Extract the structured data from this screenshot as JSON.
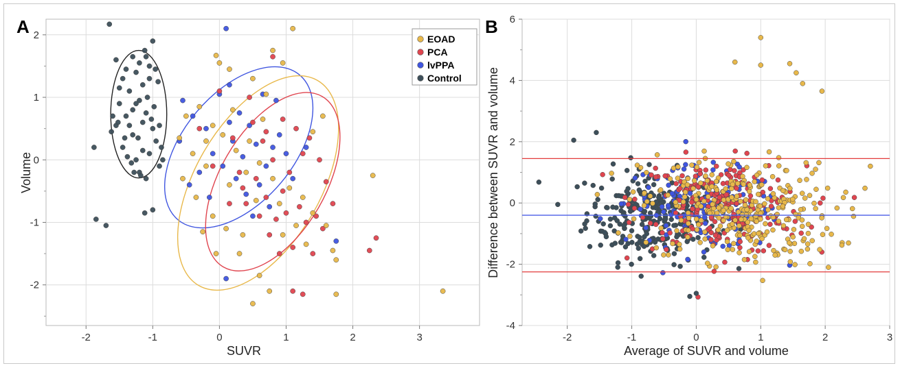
{
  "colors": {
    "EOAD": "#e8b84a",
    "PCA": "#e0454f",
    "lvPPA": "#3f55e0",
    "Control": "#3d4f5a",
    "limit_line": "#e23a3a",
    "mean_line": "#4a5ee6"
  },
  "panelA": {
    "label": "A",
    "xlabel": "SUVR",
    "ylabel": "Volume",
    "xticks": [
      "-2",
      "-1",
      "0",
      "1",
      "2",
      "3"
    ],
    "yticks": [
      "2",
      "1",
      "0",
      "-1",
      "-2"
    ],
    "legend": [
      "EOAD",
      "PCA",
      "lvPPA",
      "Control"
    ]
  },
  "panelB": {
    "label": "B",
    "xlabel": "Average of SUVR and volume",
    "ylabel": "Difference between SUVR and volume",
    "xticks": [
      "-2",
      "-1",
      "0",
      "1",
      "2",
      "3"
    ],
    "yticks": [
      "6",
      "4",
      "2",
      "0",
      "-2",
      "-4"
    ]
  },
  "chart_data": [
    {
      "type": "scatter",
      "xlabel": "SUVR",
      "ylabel": "Volume",
      "xlim": [
        -2.6,
        3.9
      ],
      "ylim": [
        -2.65,
        2.25
      ],
      "legend_position": "top-right",
      "series": [
        {
          "name": "Control",
          "points": [
            [
              -1.65,
              2.17
            ],
            [
              -1.55,
              1.6
            ],
            [
              -1.45,
              1.3
            ],
            [
              -1.35,
              1.1
            ],
            [
              -1.5,
              0.9
            ],
            [
              -1.4,
              0.7
            ],
            [
              -1.55,
              0.55
            ],
            [
              -1.3,
              0.4
            ],
            [
              -1.45,
              0.2
            ],
            [
              -1.25,
              0.0
            ],
            [
              -1.2,
              -0.2
            ],
            [
              -1.1,
              1.65
            ],
            [
              -1.0,
              1.9
            ],
            [
              -1.05,
              1.5
            ],
            [
              -1.15,
              1.2
            ],
            [
              -1.2,
              0.95
            ],
            [
              -1.1,
              0.75
            ],
            [
              -1.0,
              0.5
            ],
            [
              -0.95,
              0.3
            ],
            [
              -1.05,
              0.1
            ],
            [
              -0.9,
              -0.1
            ],
            [
              -0.85,
              0.0
            ],
            [
              -1.3,
              0.8
            ],
            [
              -1.35,
              0.55
            ],
            [
              -1.15,
              0.6
            ],
            [
              -1.25,
              1.4
            ],
            [
              -1.2,
              1.55
            ],
            [
              -1.08,
              1.0
            ],
            [
              -0.98,
              0.85
            ],
            [
              -1.42,
              0.35
            ],
            [
              -1.5,
              1.15
            ],
            [
              -1.6,
              0.7
            ],
            [
              -1.1,
              -0.3
            ],
            [
              -1.18,
              -0.25
            ],
            [
              -1.28,
              -0.2
            ],
            [
              -0.92,
              1.25
            ],
            [
              -1.88,
              0.2
            ],
            [
              -1.85,
              -0.95
            ],
            [
              -1.7,
              -1.05
            ],
            [
              -1.0,
              -0.8
            ],
            [
              -1.12,
              -0.85
            ],
            [
              -1.32,
              -0.05
            ],
            [
              -1.38,
              0.05
            ],
            [
              -1.22,
              0.35
            ],
            [
              -1.02,
              0.65
            ],
            [
              -0.96,
              1.45
            ],
            [
              -1.52,
              0.6
            ],
            [
              -1.62,
              0.45
            ],
            [
              -1.4,
              1.45
            ],
            [
              -1.3,
              1.65
            ],
            [
              -1.12,
              1.75
            ],
            [
              -1.05,
              1.3
            ],
            [
              -0.9,
              0.55
            ],
            [
              -0.87,
              0.2
            ],
            [
              -1.25,
              0.9
            ],
            [
              -1.15,
              0.15
            ]
          ]
        },
        {
          "name": "lvPPA",
          "points": [
            [
              0.1,
              2.1
            ],
            [
              -0.55,
              0.95
            ],
            [
              -0.4,
              0.7
            ],
            [
              -0.2,
              0.5
            ],
            [
              0.0,
              1.05
            ],
            [
              0.15,
              0.6
            ],
            [
              0.2,
              0.3
            ],
            [
              0.3,
              0.75
            ],
            [
              0.45,
              0.55
            ],
            [
              0.55,
              0.25
            ],
            [
              -0.1,
              0.1
            ],
            [
              0.05,
              -0.1
            ],
            [
              0.25,
              -0.3
            ],
            [
              0.4,
              -0.55
            ],
            [
              0.6,
              -0.4
            ],
            [
              0.7,
              -0.1
            ],
            [
              0.8,
              0.2
            ],
            [
              0.9,
              0.4
            ],
            [
              1.0,
              0.1
            ],
            [
              1.1,
              -0.3
            ],
            [
              0.35,
              0.05
            ],
            [
              -0.3,
              -0.2
            ],
            [
              -0.15,
              -0.6
            ],
            [
              0.1,
              -1.9
            ],
            [
              -0.6,
              0.3
            ],
            [
              -0.45,
              -0.4
            ],
            [
              0.75,
              -0.75
            ],
            [
              0.5,
              -0.9
            ],
            [
              1.3,
              0.2
            ],
            [
              0.85,
              0.95
            ],
            [
              0.65,
              1.05
            ],
            [
              1.75,
              -1.3
            ],
            [
              0.15,
              1.2
            ]
          ]
        },
        {
          "name": "PCA",
          "points": [
            [
              0.4,
              -0.7
            ],
            [
              0.55,
              -0.3
            ],
            [
              0.7,
              -0.6
            ],
            [
              0.85,
              -0.95
            ],
            [
              0.95,
              -0.5
            ],
            [
              1.05,
              -0.2
            ],
            [
              1.2,
              -0.75
            ],
            [
              1.3,
              -1.0
            ],
            [
              1.1,
              -1.4
            ],
            [
              0.9,
              -1.5
            ],
            [
              0.75,
              -1.2
            ],
            [
              0.6,
              -0.9
            ],
            [
              0.3,
              -0.2
            ],
            [
              0.2,
              0.35
            ],
            [
              0.5,
              0.6
            ],
            [
              0.65,
              0.3
            ],
            [
              0.8,
              0.0
            ],
            [
              0.95,
              0.65
            ],
            [
              1.15,
              0.5
            ],
            [
              1.35,
              0.35
            ],
            [
              1.5,
              0.0
            ],
            [
              1.6,
              -0.35
            ],
            [
              1.7,
              -0.7
            ],
            [
              1.55,
              -1.1
            ],
            [
              1.4,
              -1.5
            ],
            [
              -0.3,
              0.5
            ],
            [
              0.0,
              1.1
            ],
            [
              0.45,
              1.0
            ],
            [
              0.8,
              1.65
            ],
            [
              1.1,
              -2.1
            ],
            [
              1.25,
              -2.15
            ],
            [
              2.25,
              -1.45
            ],
            [
              2.35,
              -1.25
            ],
            [
              -0.1,
              -0.1
            ],
            [
              0.35,
              -0.45
            ],
            [
              1.0,
              -0.85
            ],
            [
              1.45,
              -0.9
            ],
            [
              0.15,
              -0.7
            ],
            [
              0.7,
              0.45
            ],
            [
              1.25,
              0.1
            ]
          ]
        },
        {
          "name": "EOAD",
          "points": [
            [
              -0.05,
              1.67
            ],
            [
              0.0,
              1.55
            ],
            [
              0.15,
              1.45
            ],
            [
              0.5,
              1.3
            ],
            [
              0.8,
              1.75
            ],
            [
              1.1,
              2.1
            ],
            [
              0.95,
              1.55
            ],
            [
              0.7,
              1.05
            ],
            [
              -0.3,
              0.85
            ],
            [
              -0.5,
              0.7
            ],
            [
              -0.6,
              0.35
            ],
            [
              -0.4,
              0.1
            ],
            [
              -0.2,
              0.3
            ],
            [
              -0.1,
              0.55
            ],
            [
              0.05,
              0.4
            ],
            [
              0.25,
              0.15
            ],
            [
              0.45,
              0.3
            ],
            [
              0.6,
              -0.05
            ],
            [
              0.8,
              -0.3
            ],
            [
              1.05,
              -0.45
            ],
            [
              1.25,
              -0.6
            ],
            [
              1.4,
              -0.85
            ],
            [
              1.6,
              -1.05
            ],
            [
              1.7,
              -1.45
            ],
            [
              1.75,
              -1.6
            ],
            [
              1.75,
              -2.15
            ],
            [
              0.5,
              -2.3
            ],
            [
              0.75,
              -2.1
            ],
            [
              0.6,
              -1.85
            ],
            [
              0.3,
              -1.5
            ],
            [
              0.1,
              -1.1
            ],
            [
              -0.1,
              -0.9
            ],
            [
              -0.35,
              -0.6
            ],
            [
              -0.55,
              -0.3
            ],
            [
              -0.2,
              -0.1
            ],
            [
              0.15,
              -0.4
            ],
            [
              0.4,
              -0.2
            ],
            [
              0.55,
              -0.65
            ],
            [
              0.9,
              -0.7
            ],
            [
              1.15,
              -1.05
            ],
            [
              1.3,
              -1.35
            ],
            [
              0.95,
              -1.2
            ],
            [
              0.35,
              -1.2
            ],
            [
              -0.05,
              -1.5
            ],
            [
              2.3,
              -0.25
            ],
            [
              3.35,
              -2.1
            ],
            [
              1.55,
              0.7
            ],
            [
              1.4,
              0.45
            ],
            [
              -0.25,
              -1.15
            ],
            [
              0.2,
              0.8
            ],
            [
              0.65,
              0.65
            ]
          ]
        }
      ],
      "ellipses": [
        {
          "group": "Control",
          "cx": -1.21,
          "cy": 0.73,
          "rx": 0.42,
          "ry": 1.02,
          "angle": 0
        },
        {
          "group": "lvPPA",
          "cx": 0.29,
          "cy": 0.2,
          "rx": 1.42,
          "ry": 0.88,
          "angle": -50
        },
        {
          "group": "EOAD",
          "cx": 0.58,
          "cy": -0.37,
          "rx": 1.78,
          "ry": 1.0,
          "angle": -60
        },
        {
          "group": "PCA",
          "cx": 0.8,
          "cy": -0.35,
          "rx": 1.48,
          "ry": 0.84,
          "angle": -60
        }
      ]
    },
    {
      "type": "scatter",
      "xlabel": "Average of SUVR and volume",
      "ylabel": "Difference between SUVR and volume",
      "xlim": [
        -2.7,
        3.0
      ],
      "ylim": [
        -4,
        6
      ],
      "hlines": [
        {
          "kind": "upper limit",
          "y": 1.45,
          "color": "red"
        },
        {
          "kind": "mean",
          "y": -0.4,
          "color": "blue"
        },
        {
          "kind": "lower limit",
          "y": -2.25,
          "color": "red"
        }
      ],
      "series_note": "Points are distributed in the same four groups as panel A (EOAD, PCA, lvPPA, Control)"
    }
  ]
}
